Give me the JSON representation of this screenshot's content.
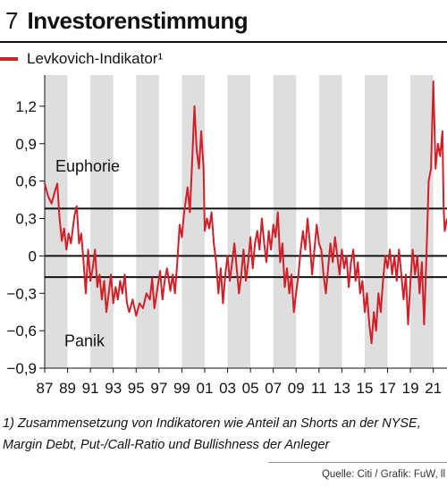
{
  "header": {
    "figure_number": "7",
    "title": "Investorenstimmung"
  },
  "legend": {
    "label": "Levkovich-Indikator¹",
    "color": "#d0202a"
  },
  "chart_data": {
    "type": "line",
    "title": "Investorenstimmung",
    "series": [
      {
        "name": "Levkovich-Indikator¹",
        "color": "#d0202a",
        "values": []
      }
    ],
    "x": [],
    "x_range": [
      1987.0,
      2022.2
    ],
    "ylim": [
      -0.9,
      1.45
    ],
    "yticks": [
      1.2,
      0.9,
      0.6,
      0.3,
      0,
      -0.3,
      -0.6,
      -0.9
    ],
    "ytick_labels": [
      "1,2",
      "0,9",
      "0,6",
      "0,3",
      "0",
      "−0,3",
      "−0,6",
      "−0,9"
    ],
    "xticks": [
      1987,
      1989,
      1991,
      1993,
      1995,
      1997,
      1999,
      2001,
      2003,
      2005,
      2007,
      2009,
      2011,
      2013,
      2015,
      2017,
      2019,
      2021
    ],
    "xtick_labels": [
      "87",
      "89",
      "91",
      "93",
      "95",
      "97",
      "99",
      "01",
      "03",
      "05",
      "07",
      "09",
      "11",
      "13",
      "15",
      "17",
      "19",
      "21"
    ],
    "reference_lines": [
      0.38,
      0,
      -0.17
    ],
    "annotations": {
      "upper": "Euphorie",
      "lower": "Panik"
    },
    "grid": false,
    "band_color": "#dedede",
    "points": [
      [
        1987.0,
        0.58
      ],
      [
        1987.3,
        0.48
      ],
      [
        1987.6,
        0.42
      ],
      [
        1987.9,
        0.52
      ],
      [
        1988.1,
        0.58
      ],
      [
        1988.3,
        0.3
      ],
      [
        1988.5,
        0.12
      ],
      [
        1988.7,
        0.22
      ],
      [
        1988.9,
        0.05
      ],
      [
        1989.1,
        0.18
      ],
      [
        1989.3,
        0.1
      ],
      [
        1989.6,
        0.32
      ],
      [
        1989.8,
        0.4
      ],
      [
        1990.0,
        0.1
      ],
      [
        1990.2,
        0.18
      ],
      [
        1990.4,
        -0.05
      ],
      [
        1990.6,
        -0.3
      ],
      [
        1990.8,
        0.05
      ],
      [
        1991.0,
        -0.2
      ],
      [
        1991.2,
        -0.1
      ],
      [
        1991.4,
        0.05
      ],
      [
        1991.6,
        -0.25
      ],
      [
        1991.8,
        -0.15
      ],
      [
        1992.0,
        -0.35
      ],
      [
        1992.2,
        -0.2
      ],
      [
        1992.4,
        -0.45
      ],
      [
        1992.6,
        -0.3
      ],
      [
        1992.8,
        -0.15
      ],
      [
        1993.0,
        -0.38
      ],
      [
        1993.2,
        -0.25
      ],
      [
        1993.4,
        -0.35
      ],
      [
        1993.6,
        -0.2
      ],
      [
        1993.8,
        -0.3
      ],
      [
        1994.0,
        -0.15
      ],
      [
        1994.2,
        -0.38
      ],
      [
        1994.4,
        -0.45
      ],
      [
        1994.7,
        -0.35
      ],
      [
        1995.0,
        -0.48
      ],
      [
        1995.3,
        -0.38
      ],
      [
        1995.6,
        -0.42
      ],
      [
        1995.9,
        -0.3
      ],
      [
        1996.2,
        -0.35
      ],
      [
        1996.4,
        -0.18
      ],
      [
        1996.6,
        -0.42
      ],
      [
        1996.8,
        -0.3
      ],
      [
        1997.1,
        -0.12
      ],
      [
        1997.3,
        -0.35
      ],
      [
        1997.5,
        -0.2
      ],
      [
        1997.7,
        -0.1
      ],
      [
        1998.0,
        -0.28
      ],
      [
        1998.2,
        -0.15
      ],
      [
        1998.4,
        -0.3
      ],
      [
        1998.6,
        -0.05
      ],
      [
        1998.8,
        0.25
      ],
      [
        1999.0,
        0.15
      ],
      [
        1999.2,
        0.35
      ],
      [
        1999.5,
        0.55
      ],
      [
        1999.7,
        0.35
      ],
      [
        1999.9,
        0.75
      ],
      [
        2000.1,
        1.2
      ],
      [
        2000.3,
        0.85
      ],
      [
        2000.5,
        0.7
      ],
      [
        2000.7,
        1.0
      ],
      [
        2000.9,
        0.7
      ],
      [
        2001.0,
        0.2
      ],
      [
        2001.2,
        0.3
      ],
      [
        2001.4,
        0.22
      ],
      [
        2001.6,
        0.35
      ],
      [
        2001.8,
        0.1
      ],
      [
        2002.0,
        -0.05
      ],
      [
        2002.2,
        -0.3
      ],
      [
        2002.4,
        -0.1
      ],
      [
        2002.6,
        -0.38
      ],
      [
        2002.8,
        -0.15
      ],
      [
        2003.0,
        0.0
      ],
      [
        2003.2,
        -0.2
      ],
      [
        2003.4,
        -0.05
      ],
      [
        2003.6,
        0.1
      ],
      [
        2003.8,
        -0.1
      ],
      [
        2004.0,
        -0.3
      ],
      [
        2004.2,
        -0.15
      ],
      [
        2004.4,
        0.05
      ],
      [
        2004.6,
        -0.2
      ],
      [
        2004.8,
        -0.05
      ],
      [
        2005.0,
        0.15
      ],
      [
        2005.2,
        -0.1
      ],
      [
        2005.4,
        0.1
      ],
      [
        2005.6,
        0.2
      ],
      [
        2005.8,
        0.05
      ],
      [
        2006.0,
        0.3
      ],
      [
        2006.2,
        0.1
      ],
      [
        2006.4,
        -0.05
      ],
      [
        2006.6,
        0.2
      ],
      [
        2006.8,
        0.05
      ],
      [
        2007.0,
        0.25
      ],
      [
        2007.2,
        0.15
      ],
      [
        2007.4,
        0.35
      ],
      [
        2007.6,
        -0.05
      ],
      [
        2007.8,
        0.1
      ],
      [
        2008.0,
        -0.25
      ],
      [
        2008.2,
        -0.1
      ],
      [
        2008.4,
        -0.3
      ],
      [
        2008.6,
        -0.15
      ],
      [
        2008.8,
        -0.45
      ],
      [
        2009.0,
        -0.3
      ],
      [
        2009.2,
        -0.15
      ],
      [
        2009.4,
        0.05
      ],
      [
        2009.6,
        0.2
      ],
      [
        2009.8,
        0.05
      ],
      [
        2010.0,
        0.3
      ],
      [
        2010.2,
        0.1
      ],
      [
        2010.4,
        -0.15
      ],
      [
        2010.6,
        0.05
      ],
      [
        2010.8,
        0.25
      ],
      [
        2011.0,
        0.1
      ],
      [
        2011.2,
        0.05
      ],
      [
        2011.4,
        -0.15
      ],
      [
        2011.6,
        -0.3
      ],
      [
        2011.8,
        -0.1
      ],
      [
        2012.0,
        0.1
      ],
      [
        2012.2,
        -0.05
      ],
      [
        2012.4,
        0.15
      ],
      [
        2012.6,
        0.0
      ],
      [
        2012.8,
        -0.15
      ],
      [
        2013.0,
        0.05
      ],
      [
        2013.2,
        -0.1
      ],
      [
        2013.4,
        0.0
      ],
      [
        2013.6,
        -0.25
      ],
      [
        2013.8,
        -0.05
      ],
      [
        2014.0,
        0.05
      ],
      [
        2014.2,
        -0.2
      ],
      [
        2014.4,
        -0.05
      ],
      [
        2014.6,
        -0.3
      ],
      [
        2014.8,
        -0.2
      ],
      [
        2015.0,
        -0.45
      ],
      [
        2015.2,
        -0.3
      ],
      [
        2015.4,
        -0.55
      ],
      [
        2015.6,
        -0.7
      ],
      [
        2015.8,
        -0.45
      ],
      [
        2016.0,
        -0.6
      ],
      [
        2016.2,
        -0.3
      ],
      [
        2016.4,
        -0.45
      ],
      [
        2016.6,
        -0.2
      ],
      [
        2016.8,
        0.0
      ],
      [
        2017.0,
        -0.1
      ],
      [
        2017.2,
        0.05
      ],
      [
        2017.4,
        -0.15
      ],
      [
        2017.6,
        0.0
      ],
      [
        2017.8,
        -0.2
      ],
      [
        2018.0,
        0.05
      ],
      [
        2018.2,
        -0.15
      ],
      [
        2018.4,
        -0.35
      ],
      [
        2018.6,
        -0.15
      ],
      [
        2018.8,
        -0.55
      ],
      [
        2019.0,
        -0.2
      ],
      [
        2019.2,
        0.05
      ],
      [
        2019.4,
        -0.15
      ],
      [
        2019.6,
        0.0
      ],
      [
        2019.8,
        -0.3
      ],
      [
        2020.0,
        -0.05
      ],
      [
        2020.2,
        -0.55
      ],
      [
        2020.4,
        0.0
      ],
      [
        2020.6,
        0.6
      ],
      [
        2020.8,
        0.7
      ],
      [
        2021.0,
        1.4
      ],
      [
        2021.2,
        0.7
      ],
      [
        2021.4,
        0.9
      ],
      [
        2021.6,
        0.8
      ],
      [
        2021.8,
        1.0
      ],
      [
        2021.9,
        0.4
      ],
      [
        2022.0,
        0.2
      ],
      [
        2022.2,
        0.3
      ]
    ]
  },
  "footnote": {
    "line1": "1) Zusammensetzung von Indikatoren wie Anteil an Shorts an der NYSE,",
    "line2": "Margin Debt, Put-/Call-Ratio und Bullishness der Anleger"
  },
  "source": "Quelle: Citi / Grafik: FuW, ll"
}
